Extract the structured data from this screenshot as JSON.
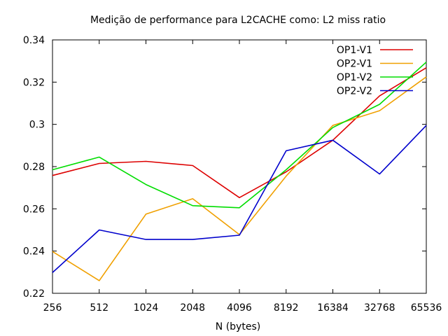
{
  "chart_data": {
    "type": "line",
    "title": "Medição de performance para L2CACHE como: L2 miss ratio",
    "xlabel": "N (bytes)",
    "ylabel": "",
    "categories": [
      "256",
      "512",
      "1024",
      "2048",
      "4096",
      "8192",
      "16384",
      "32768",
      "65536"
    ],
    "yticks": [
      "0.22",
      "0.24",
      "0.26",
      "0.28",
      "0.3",
      "0.32",
      "0.34"
    ],
    "ylim": [
      0.22,
      0.34
    ],
    "grid": false,
    "legend_position": "top-right",
    "series": [
      {
        "name": "OP1-V1",
        "color": "#dd0000",
        "values": [
          0.2758,
          0.2815,
          0.2825,
          0.2805,
          0.2653,
          0.2775,
          0.2925,
          0.3135,
          0.3268
        ]
      },
      {
        "name": "OP2-V1",
        "color": "#f0a000",
        "values": [
          0.2398,
          0.226,
          0.2575,
          0.2648,
          0.2478,
          0.2755,
          0.2995,
          0.3065,
          0.3225
        ]
      },
      {
        "name": "OP1-V2",
        "color": "#00dd00",
        "values": [
          0.2785,
          0.2845,
          0.2715,
          0.2615,
          0.2605,
          0.2785,
          0.2985,
          0.3095,
          0.3295
        ]
      },
      {
        "name": "OP2-V2",
        "color": "#0000cc",
        "values": [
          0.2298,
          0.25,
          0.2455,
          0.2455,
          0.2475,
          0.2875,
          0.2925,
          0.2765,
          0.2995
        ]
      }
    ]
  }
}
